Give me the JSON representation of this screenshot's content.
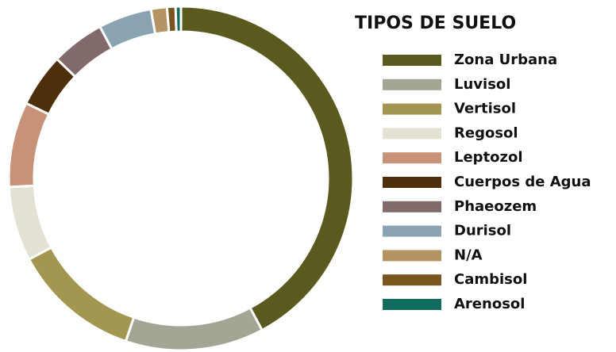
{
  "chart_data": {
    "type": "donut",
    "title": "TIPOS DE SUELO",
    "categories": [
      "Zona Urbana",
      "Luvisol",
      "Vertisol",
      "Regosol",
      "Leptozol",
      "Cuerpos de Agua",
      "Phaeozem",
      "Durisol",
      "N/A",
      "Cambisol",
      "Arenosol"
    ],
    "values": [
      42.2,
      13,
      12,
      7,
      8,
      5,
      5,
      5,
      1.5,
      0.8,
      0.5
    ],
    "colors": [
      "#5a5a1e",
      "#a3a595",
      "#a39650",
      "#e3e1d3",
      "#c79278",
      "#4f2e0c",
      "#826a6a",
      "#8aa3b3",
      "#b59463",
      "#7a5520",
      "#0f6b5c"
    ],
    "legend": "right"
  }
}
